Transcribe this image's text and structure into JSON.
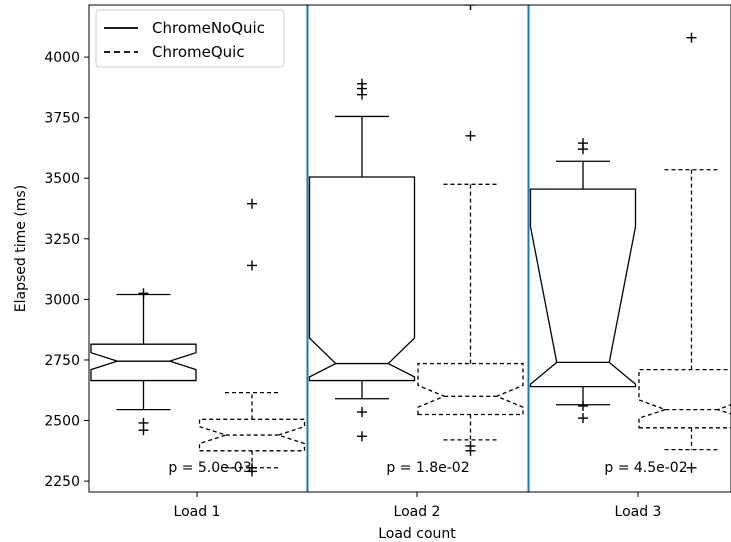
{
  "chart_data": {
    "type": "boxplot",
    "title": "",
    "xlabel": "Load count",
    "ylabel": "Elapsed time (ms)",
    "categories": [
      "Load 1",
      "Load 2",
      "Load 3"
    ],
    "ylim": [
      2205,
      4215
    ],
    "yticks": [
      2250,
      2500,
      2750,
      3000,
      3250,
      3500,
      3750,
      4000
    ],
    "notched": true,
    "legend": {
      "placement": "top-left",
      "entries": [
        {
          "name": "ChromeNoQuic",
          "line_style": "solid"
        },
        {
          "name": "ChromeQuic",
          "line_style": "dashed"
        }
      ]
    },
    "separator_color": "#1f77b4",
    "series": [
      {
        "name": "ChromeNoQuic",
        "line_style": "solid",
        "boxes": [
          {
            "category": "Load 1",
            "whisker_low": 2545,
            "q1": 2665,
            "notch_low": 2710,
            "median": 2745,
            "notch_high": 2780,
            "q3": 2815,
            "whisker_high": 3020,
            "outliers": [
              2460,
              2490,
              3025
            ]
          },
          {
            "category": "Load 2",
            "whisker_low": 2590,
            "q1": 2665,
            "notch_low": 2680,
            "median": 2735,
            "notch_high": 2840,
            "q3": 3505,
            "whisker_high": 3755,
            "outliers": [
              2435,
              2535,
              3845,
              3870,
              3890
            ]
          },
          {
            "category": "Load 3",
            "whisker_low": 2565,
            "q1": 2640,
            "notch_low": 2650,
            "median": 2740,
            "notch_high": 3300,
            "q3": 3455,
            "whisker_high": 3570,
            "outliers": [
              2510,
              2560,
              3620,
              3645
            ]
          }
        ]
      },
      {
        "name": "ChromeQuic",
        "line_style": "dashed",
        "boxes": [
          {
            "category": "Load 1",
            "whisker_low": 2305,
            "q1": 2375,
            "notch_low": 2405,
            "median": 2440,
            "notch_high": 2475,
            "q3": 2505,
            "whisker_high": 2615,
            "outliers": [
              2290,
              2305,
              3140,
              3395
            ]
          },
          {
            "category": "Load 2",
            "whisker_low": 2420,
            "q1": 2525,
            "notch_low": 2555,
            "median": 2600,
            "notch_high": 2645,
            "q3": 2735,
            "whisker_high": 3475,
            "outliers": [
              2375,
              2395,
              3675,
              4215
            ]
          },
          {
            "category": "Load 3",
            "whisker_low": 2380,
            "q1": 2470,
            "notch_low": 2510,
            "median": 2545,
            "notch_high": 2585,
            "q3": 2710,
            "whisker_high": 3535,
            "outliers": [
              2305,
              4080
            ]
          }
        ]
      }
    ],
    "annotations": [
      "p = 5.0e-03",
      "p = 1.8e-02",
      "p = 4.5e-02"
    ]
  }
}
